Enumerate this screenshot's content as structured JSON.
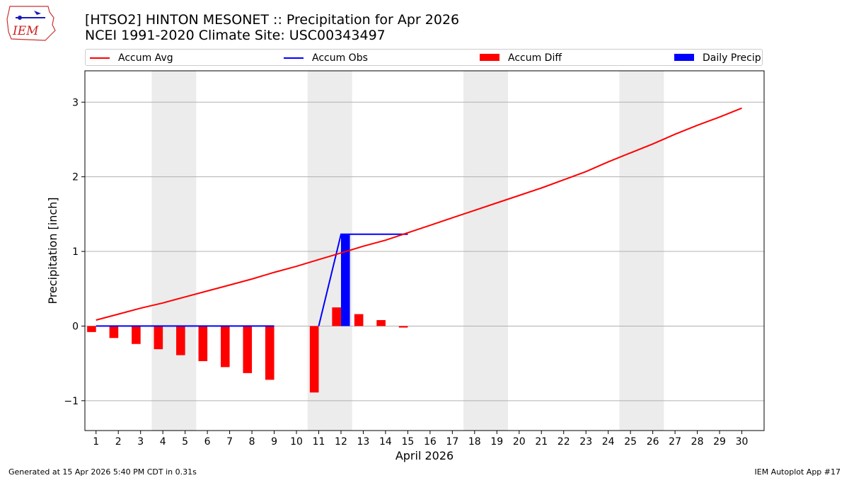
{
  "header": {
    "title_line1": "[HTSO2] HINTON MESONET :: Precipitation for Apr 2026",
    "title_line2": "NCEI 1991-2020 Climate Site: USC00343497",
    "logo_text": "IEM"
  },
  "footer": {
    "generated": "Generated at 15 Apr 2026 5:40 PM CDT in 0.31s",
    "app": "IEM Autoplot App #17"
  },
  "colors": {
    "accum_avg": "#ff0000",
    "accum_obs": "#0000ff",
    "accum_diff": "#ff0000",
    "daily_precip": "#0000ff",
    "weekend_shade": "#ececec",
    "grid": "#b0b0b0"
  },
  "chart_data": {
    "type": "bar",
    "xlabel": "April 2026",
    "ylabel": "Precipitation [inch]",
    "xlim": [
      0.5,
      31
    ],
    "ylim": [
      -1.4,
      3.42
    ],
    "yticks": [
      -1,
      0,
      1,
      2,
      3
    ],
    "ytick_labels": [
      "−1",
      "0",
      "1",
      "2",
      "3"
    ],
    "grid": "y",
    "days": [
      1,
      2,
      3,
      4,
      5,
      6,
      7,
      8,
      9,
      10,
      11,
      12,
      13,
      14,
      15,
      16,
      17,
      18,
      19,
      20,
      21,
      22,
      23,
      24,
      25,
      26,
      27,
      28,
      29,
      30
    ],
    "weekend_spans": [
      [
        3.5,
        5.5
      ],
      [
        10.5,
        12.5
      ],
      [
        17.5,
        19.5
      ],
      [
        24.5,
        26.5
      ]
    ],
    "legend": [
      {
        "key": "accum_avg",
        "label": "Accum Avg",
        "kind": "line"
      },
      {
        "key": "accum_obs",
        "label": "Accum Obs",
        "kind": "line"
      },
      {
        "key": "accum_diff",
        "label": "Accum Diff",
        "kind": "bar"
      },
      {
        "key": "daily_precip",
        "label": "Daily Precip",
        "kind": "bar"
      }
    ],
    "series": [
      {
        "name": "Accum Avg",
        "kind": "line",
        "x": [
          1,
          2,
          3,
          4,
          5,
          6,
          7,
          8,
          9,
          10,
          11,
          12,
          13,
          14,
          15,
          16,
          17,
          18,
          19,
          20,
          21,
          22,
          23,
          24,
          25,
          26,
          27,
          28,
          29,
          30
        ],
        "values": [
          0.08,
          0.16,
          0.24,
          0.31,
          0.39,
          0.47,
          0.55,
          0.63,
          0.72,
          0.8,
          0.89,
          0.98,
          1.07,
          1.15,
          1.25,
          1.35,
          1.45,
          1.55,
          1.65,
          1.75,
          1.85,
          1.96,
          2.07,
          2.2,
          2.32,
          2.44,
          2.57,
          2.69,
          2.8,
          2.92
        ]
      },
      {
        "name": "Accum Obs",
        "kind": "line",
        "x": [
          1,
          2,
          3,
          4,
          5,
          6,
          7,
          8,
          9,
          10,
          11,
          12,
          13,
          14,
          15
        ],
        "values": [
          0,
          0,
          0,
          0,
          0,
          0,
          0,
          0,
          0,
          null,
          0,
          1.23,
          1.23,
          1.23,
          1.23
        ]
      },
      {
        "name": "Accum Diff",
        "kind": "bar",
        "x": [
          1,
          2,
          3,
          4,
          5,
          6,
          7,
          8,
          9,
          11,
          12,
          13,
          14,
          15
        ],
        "values": [
          -0.08,
          -0.16,
          -0.24,
          -0.31,
          -0.39,
          -0.47,
          -0.55,
          -0.63,
          -0.72,
          -0.89,
          0.25,
          0.16,
          0.08,
          -0.02
        ]
      },
      {
        "name": "Daily Precip",
        "kind": "bar",
        "x": [
          12
        ],
        "values": [
          1.23
        ]
      }
    ]
  }
}
